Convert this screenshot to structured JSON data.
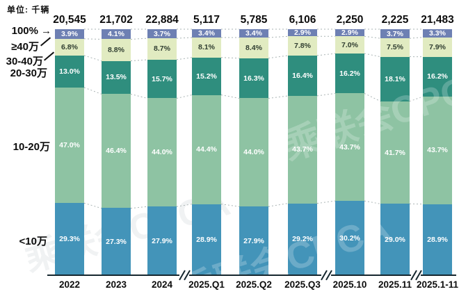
{
  "chart_data": {
    "type": "bar",
    "subtype": "stacked-100-percent",
    "title": "",
    "unit_label": "单位: 千辆",
    "categories": [
      "2022",
      "2023",
      "2024",
      "2025.Q1",
      "2025.Q2",
      "2025.Q3",
      "2025.10",
      "2025.11",
      "2025.1-11"
    ],
    "totals": [
      "20,545",
      "21,702",
      "22,884",
      "5,117",
      "5,785",
      "6,106",
      "2,250",
      "2,225",
      "21,483"
    ],
    "series": [
      {
        "name": "≥40万",
        "color": "#6e80b3",
        "label_color": "#ffffff",
        "values": [
          3.9,
          4.1,
          3.7,
          3.4,
          3.4,
          2.9,
          2.9,
          3.7,
          3.3
        ]
      },
      {
        "name": "30-40万",
        "color": "#e1ebc1",
        "label_color": "#2f3d30",
        "values": [
          6.8,
          8.8,
          8.7,
          8.1,
          8.4,
          7.8,
          7.0,
          7.5,
          7.9
        ]
      },
      {
        "name": "20-30万",
        "color": "#2f8e7e",
        "label_color": "#ffffff",
        "values": [
          13.0,
          13.5,
          15.7,
          15.2,
          16.3,
          16.4,
          16.2,
          18.1,
          16.2
        ]
      },
      {
        "name": "10-20万",
        "color": "#8ec3a3",
        "label_color": "#ffffff",
        "values": [
          47.0,
          46.4,
          44.0,
          44.4,
          44.0,
          43.7,
          43.7,
          41.7,
          43.7
        ]
      },
      {
        "name": "<10万",
        "color": "#4394b9",
        "label_color": "#ffffff",
        "values": [
          29.3,
          27.3,
          27.9,
          28.9,
          27.9,
          29.2,
          30.2,
          29.0,
          28.9
        ]
      }
    ],
    "left_axis_labels": [
      "100%",
      "≥40万",
      "30-40万",
      "20-30万",
      "10-20万",
      "<10万"
    ],
    "axis_break_after_categories": [
      "2024",
      "2025.Q3",
      "2025.11"
    ],
    "ylim": [
      0,
      100
    ],
    "grid": false,
    "legend_position": "none",
    "connector_lines": "dashed",
    "value_suffix": "%",
    "watermark": "乘联会CPCA"
  }
}
